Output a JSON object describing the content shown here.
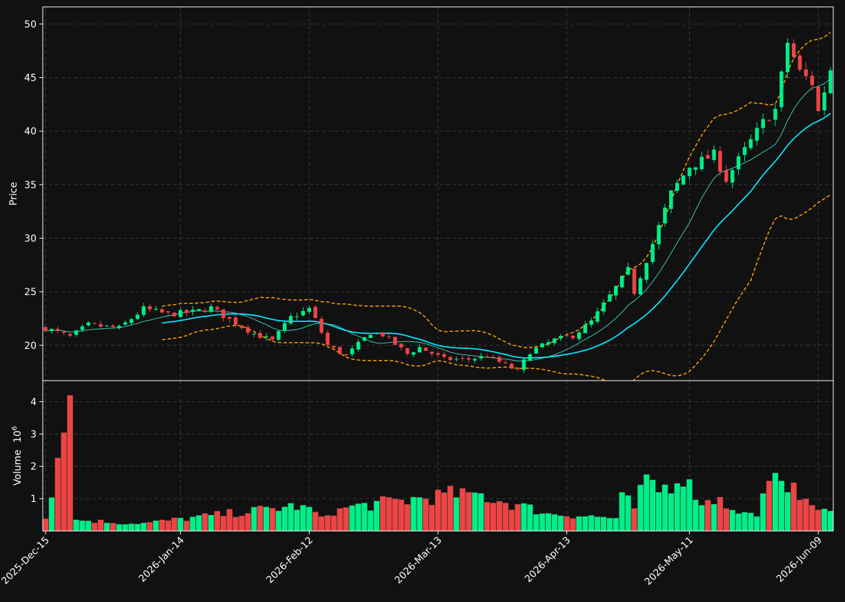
{
  "chart_data": [
    {
      "type": "candlestick",
      "title": "",
      "ylabel": "Price",
      "ylim": [
        16.7,
        51.6
      ],
      "yticks": [
        20,
        25,
        30,
        35,
        40,
        45,
        50
      ],
      "up_color": "#00ee88",
      "down_color": "#ee4444",
      "x_range": [
        "2025-12-15",
        "2026-06-11"
      ],
      "xtick_labels": [
        "2025-Dec-15",
        "2026-Jan-14",
        "2026-Feb-12",
        "2026-Mar-13",
        "2026-Apr-13",
        "2026-May-11",
        "2026-Jun-09"
      ],
      "anchor_prices": [
        [
          "2025-12-15",
          21.6
        ],
        [
          "2025-12-19",
          20.8
        ],
        [
          "2025-12-24",
          21.9
        ],
        [
          "2025-12-31",
          21.6
        ],
        [
          "2026-01-06",
          23.4
        ],
        [
          "2026-01-12",
          22.9
        ],
        [
          "2026-01-16",
          23.1
        ],
        [
          "2026-01-21",
          23.5
        ],
        [
          "2026-01-26",
          22.4
        ],
        [
          "2026-01-30",
          21.1
        ],
        [
          "2026-02-04",
          20.4
        ],
        [
          "2026-02-09",
          22.6
        ],
        [
          "2026-02-12",
          23.4
        ],
        [
          "2026-02-13",
          22.4
        ],
        [
          "2026-02-17",
          20.0
        ],
        [
          "2026-02-20",
          19.0
        ],
        [
          "2026-02-26",
          21.2
        ],
        [
          "2026-03-02",
          21.0
        ],
        [
          "2026-03-06",
          19.2
        ],
        [
          "2026-03-10",
          19.8
        ],
        [
          "2026-03-16",
          18.7
        ],
        [
          "2026-03-20",
          18.7
        ],
        [
          "2026-03-25",
          19.0
        ],
        [
          "2026-04-01",
          17.6
        ],
        [
          "2026-04-03",
          19.4
        ],
        [
          "2026-04-09",
          20.5
        ],
        [
          "2026-04-14",
          20.9
        ],
        [
          "2026-04-17",
          22.2
        ],
        [
          "2026-04-22",
          24.6
        ],
        [
          "2026-04-27",
          27.0
        ],
        [
          "2026-04-28",
          25.0
        ],
        [
          "2026-05-01",
          29.5
        ],
        [
          "2026-05-06",
          34.2
        ],
        [
          "2026-05-11",
          36.7
        ],
        [
          "2026-05-15",
          37.8
        ],
        [
          "2026-05-19",
          35.5
        ],
        [
          "2026-05-22",
          38.2
        ],
        [
          "2026-05-27",
          40.8
        ],
        [
          "2026-05-29",
          42.0
        ],
        [
          "2026-06-02",
          48.3
        ],
        [
          "2026-06-04",
          45.5
        ],
        [
          "2026-06-08",
          44.5
        ],
        [
          "2026-06-09",
          41.8
        ],
        [
          "2026-06-11",
          45.8
        ]
      ],
      "bollinger_color": "#ffa500",
      "ma_colors": [
        "#00e8ff",
        "#40e0d0"
      ]
    },
    {
      "type": "bar",
      "title": "",
      "ylabel": "Volume",
      "yunit": "10",
      "yunit_exp": "6",
      "ylim": [
        0,
        4.65
      ],
      "yticks": [
        1,
        2,
        3,
        4
      ],
      "volume_anchors": [
        [
          "2025-12-15",
          0.38
        ],
        [
          "2025-12-19",
          4.2
        ],
        [
          "2025-12-20",
          0.35
        ],
        [
          "2026-01-05",
          0.22
        ],
        [
          "2026-02-11",
          0.8
        ],
        [
          "2026-02-14",
          0.45
        ],
        [
          "2026-02-19",
          0.7
        ],
        [
          "2026-03-20",
          1.2
        ],
        [
          "2026-04-08",
          0.55
        ],
        [
          "2026-04-23",
          0.4
        ],
        [
          "2026-04-25",
          1.6
        ],
        [
          "2026-04-26",
          1.1
        ],
        [
          "2026-04-28",
          0.7
        ],
        [
          "2026-04-30",
          1.75
        ],
        [
          "2026-05-04",
          1.2
        ],
        [
          "2026-05-10",
          1.95
        ],
        [
          "2026-05-11",
          1.6
        ],
        [
          "2026-05-13",
          0.8
        ],
        [
          "2026-05-16",
          1.05
        ],
        [
          "2026-05-20",
          0.65
        ],
        [
          "2026-05-26",
          0.45
        ],
        [
          "2026-05-28",
          1.55
        ],
        [
          "2026-05-29",
          1.8
        ],
        [
          "2026-06-01",
          1.55
        ],
        [
          "2026-06-03",
          1.5
        ],
        [
          "2026-06-05",
          1.0
        ],
        [
          "2026-06-08",
          0.8
        ],
        [
          "2026-06-11",
          0.62
        ]
      ]
    }
  ]
}
